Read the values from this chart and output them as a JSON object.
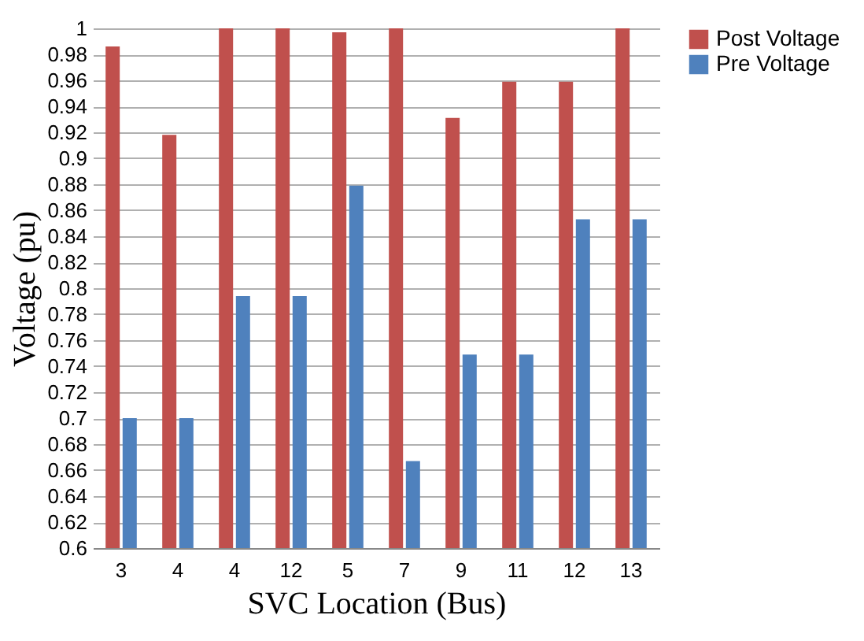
{
  "chart_data": {
    "type": "bar",
    "xlabel": "SVC Location (Bus)",
    "ylabel": "Voltage (pu)",
    "categories": [
      "3",
      "4",
      "4",
      "12",
      "5",
      "7",
      "9",
      "11",
      "12",
      "13"
    ],
    "series": [
      {
        "name": "Post Voltage",
        "color": "#c0504d",
        "values": [
          0.986,
          0.918,
          1,
          1,
          0.997,
          1,
          0.931,
          0.959,
          0.959,
          1
        ]
      },
      {
        "name": "Pre Voltage",
        "color": "#4f81bd",
        "values": [
          0.7,
          0.7,
          0.794,
          0.794,
          0.879,
          0.667,
          0.749,
          0.749,
          0.853,
          0.853
        ]
      }
    ],
    "ylim": [
      0.6,
      1
    ],
    "yticks": [
      0.6,
      0.62,
      0.64,
      0.66,
      0.68,
      0.7,
      0.72,
      0.74,
      0.76,
      0.78,
      0.8,
      0.82,
      0.84,
      0.86,
      0.88,
      0.9,
      0.92,
      0.94,
      0.96,
      0.98,
      1
    ],
    "grid": "y",
    "legend": "right"
  }
}
